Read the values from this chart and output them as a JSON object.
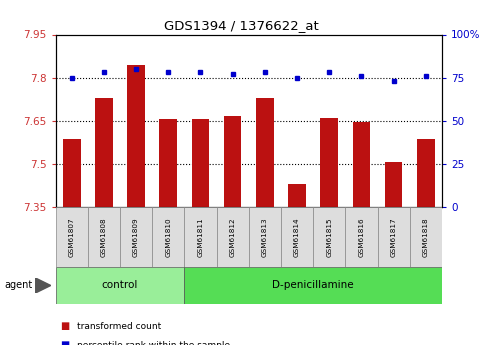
{
  "title": "GDS1394 / 1376622_at",
  "samples": [
    "GSM61807",
    "GSM61808",
    "GSM61809",
    "GSM61810",
    "GSM61811",
    "GSM61812",
    "GSM61813",
    "GSM61814",
    "GSM61815",
    "GSM61816",
    "GSM61817",
    "GSM61818"
  ],
  "bar_values": [
    7.585,
    7.73,
    7.845,
    7.655,
    7.655,
    7.665,
    7.73,
    7.43,
    7.66,
    7.645,
    7.505,
    7.585
  ],
  "percentile_values": [
    75,
    78,
    80,
    78,
    78,
    77,
    78,
    75,
    78,
    76,
    73,
    76
  ],
  "ylim_left": [
    7.35,
    7.95
  ],
  "ylim_right": [
    0,
    100
  ],
  "yticks_left": [
    7.35,
    7.5,
    7.65,
    7.8,
    7.95
  ],
  "yticks_right": [
    0,
    25,
    50,
    75,
    100
  ],
  "ytick_labels_left": [
    "7.35",
    "7.5",
    "7.65",
    "7.8",
    "7.95"
  ],
  "ytick_labels_right": [
    "0",
    "25",
    "50",
    "75",
    "100%"
  ],
  "hlines": [
    7.5,
    7.65,
    7.8
  ],
  "bar_color": "#BB1111",
  "dot_color": "#0000CC",
  "control_count": 4,
  "groups": [
    {
      "label": "control",
      "color": "#99EE99",
      "start": 0,
      "end": 4
    },
    {
      "label": "D-penicillamine",
      "color": "#55DD55",
      "start": 4,
      "end": 12
    }
  ],
  "legend_items": [
    {
      "label": "transformed count",
      "color": "#BB1111"
    },
    {
      "label": "percentile rank within the sample",
      "color": "#0000CC"
    }
  ],
  "agent_label": "agent",
  "left_tick_color": "#CC3333",
  "right_tick_color": "#0000CC",
  "box_color": "#DDDDDD",
  "background_color": "#ffffff"
}
